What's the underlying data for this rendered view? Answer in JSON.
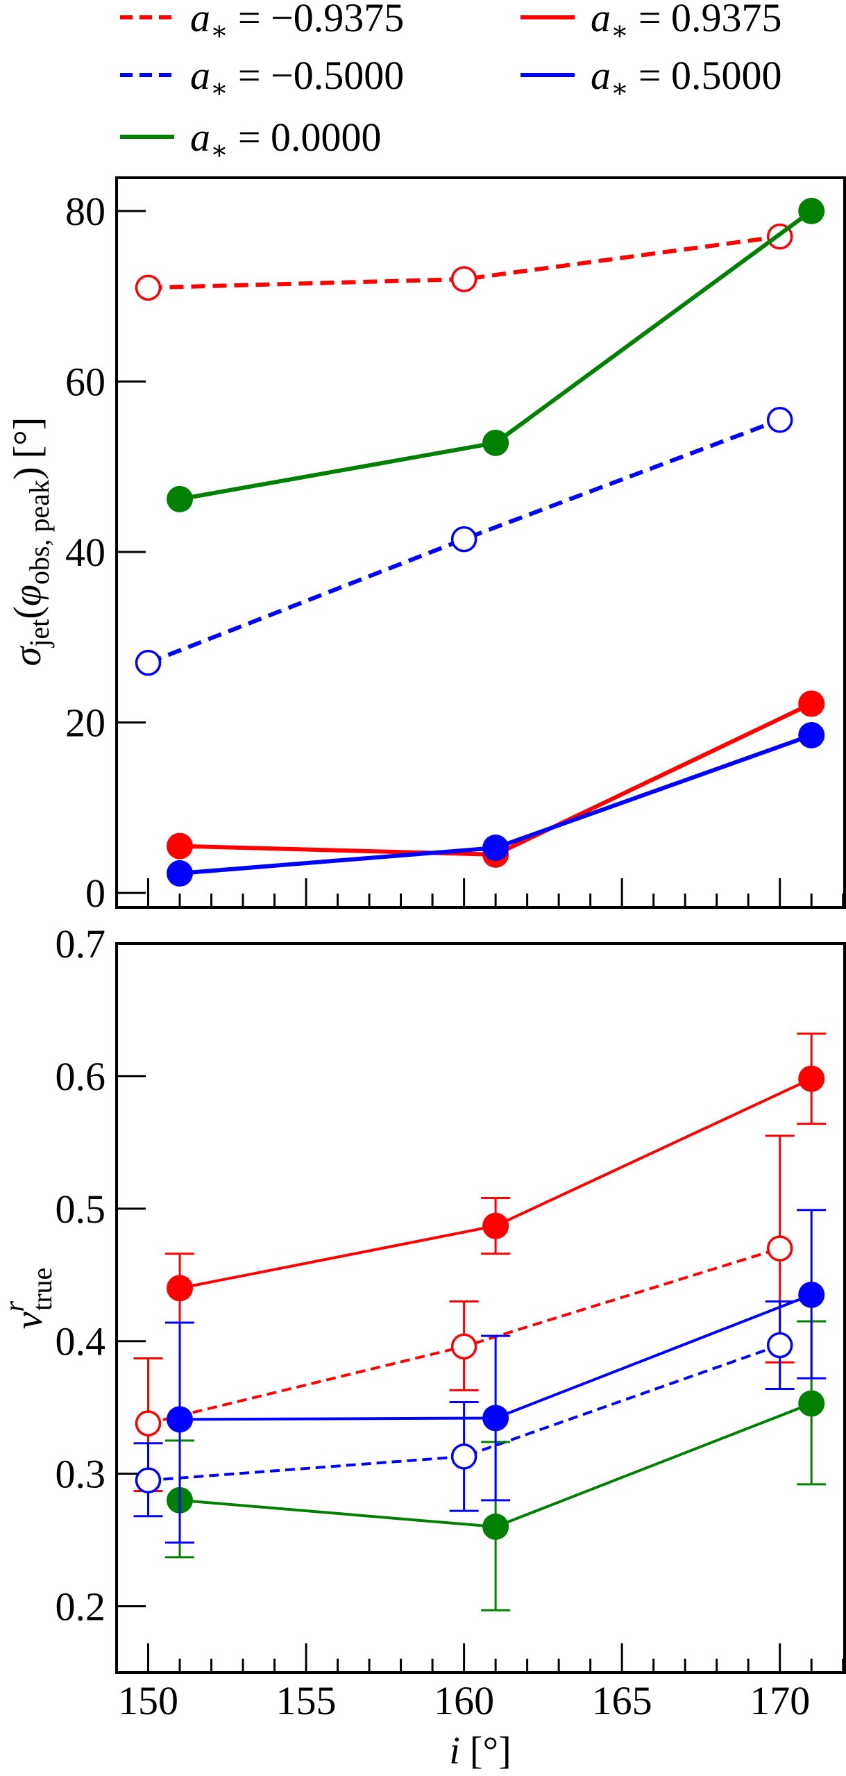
{
  "chart_data": [
    {
      "type": "line",
      "title": "",
      "xlabel": "",
      "ylabel": "σjet(φobs, peak) [°]",
      "ylabel_parts": {
        "main": "σ",
        "sub": "jet",
        "paren_open": "(",
        "phi": "φ",
        "phi_sub": "obs, peak",
        "paren_close": ")",
        "unit": "[°]"
      },
      "xlim": [
        149,
        172.05
      ],
      "ylim": [
        -1.7,
        83.9
      ],
      "xticks": [
        150,
        155,
        160,
        165,
        170
      ],
      "xtick_labels_shown": false,
      "yticks": [
        0,
        20,
        40,
        60,
        80
      ],
      "ytick_labels": [
        "0",
        "20",
        "40",
        "60",
        "80"
      ],
      "grid": false,
      "series": [
        {
          "name": "a* = −0.9375",
          "color": "#ff0000",
          "dashed": true,
          "filled": false,
          "x": [
            150,
            160,
            170
          ],
          "y": [
            71.0,
            72.0,
            77.0
          ]
        },
        {
          "name": "a* = −0.5000",
          "color": "#0000ff",
          "dashed": true,
          "filled": false,
          "x": [
            150,
            160,
            170
          ],
          "y": [
            27.0,
            41.5,
            55.5
          ]
        },
        {
          "name": "a* = 0.0000",
          "color": "#008000",
          "dashed": false,
          "filled": true,
          "x": [
            151,
            161,
            171
          ],
          "y": [
            46.2,
            52.8,
            80.0
          ]
        },
        {
          "name": "a* = 0.9375",
          "color": "#ff0000",
          "dashed": false,
          "filled": true,
          "x": [
            151,
            161,
            171
          ],
          "y": [
            5.5,
            4.5,
            22.2
          ]
        },
        {
          "name": "a* = 0.5000",
          "color": "#0000ff",
          "dashed": false,
          "filled": true,
          "x": [
            151,
            161,
            171
          ],
          "y": [
            2.3,
            5.3,
            18.5
          ]
        }
      ]
    },
    {
      "type": "line",
      "title": "",
      "xlabel": "i [°]",
      "xlabel_parts": {
        "var": "i",
        "unit": "[°]"
      },
      "ylabel": "v^r_true",
      "ylabel_parts": {
        "main": "v",
        "sup": "r",
        "sub": "true"
      },
      "xlim": [
        149,
        172.05
      ],
      "ylim": [
        0.15,
        0.7
      ],
      "xticks": [
        150,
        155,
        160,
        165,
        170
      ],
      "xtick_labels": [
        "150",
        "155",
        "160",
        "165",
        "170"
      ],
      "yticks": [
        0.2,
        0.3,
        0.4,
        0.5,
        0.6,
        0.7
      ],
      "ytick_labels": [
        "0.2",
        "0.3",
        "0.4",
        "0.5",
        "0.6",
        "0.7"
      ],
      "grid": false,
      "series": [
        {
          "name": "a* = −0.9375",
          "color": "#ff0000",
          "dashed": true,
          "filled": false,
          "x": [
            150,
            160,
            170
          ],
          "y": [
            0.338,
            0.396,
            0.47
          ],
          "err_low": [
            0.287,
            0.363,
            0.384
          ],
          "err_high": [
            0.387,
            0.43,
            0.555
          ]
        },
        {
          "name": "a* = −0.5000",
          "color": "#0000ff",
          "dashed": true,
          "filled": false,
          "x": [
            150,
            160,
            170
          ],
          "y": [
            0.295,
            0.313,
            0.397
          ],
          "err_low": [
            0.268,
            0.272,
            0.364
          ],
          "err_high": [
            0.323,
            0.354,
            0.43
          ]
        },
        {
          "name": "a* = 0.0000",
          "color": "#008000",
          "dashed": false,
          "filled": true,
          "x": [
            151,
            161,
            171
          ],
          "y": [
            0.28,
            0.26,
            0.353
          ],
          "err_low": [
            0.237,
            0.197,
            0.292
          ],
          "err_high": [
            0.325,
            0.324,
            0.415
          ]
        },
        {
          "name": "a* = 0.9375",
          "color": "#ff0000",
          "dashed": false,
          "filled": true,
          "x": [
            151,
            161,
            171
          ],
          "y": [
            0.44,
            0.487,
            0.598
          ],
          "err_low": [
            0.414,
            0.466,
            0.564
          ],
          "err_high": [
            0.466,
            0.508,
            0.632
          ]
        },
        {
          "name": "a* = 0.5000",
          "color": "#0000ff",
          "dashed": false,
          "filled": true,
          "x": [
            151,
            161,
            171
          ],
          "y": [
            0.341,
            0.342,
            0.435
          ],
          "err_low": [
            0.248,
            0.28,
            0.372
          ],
          "err_high": [
            0.414,
            0.404,
            0.499
          ]
        }
      ]
    }
  ],
  "legend": {
    "placement": "top, above plots, two columns",
    "entries": [
      {
        "symbol": "a",
        "sub": "∗",
        "value": "= −0.9375",
        "color": "#ff0000",
        "dashed": true
      },
      {
        "symbol": "a",
        "sub": "∗",
        "value": "= 0.9375",
        "color": "#ff0000",
        "dashed": false
      },
      {
        "symbol": "a",
        "sub": "∗",
        "value": "= −0.5000",
        "color": "#0000ff",
        "dashed": true
      },
      {
        "symbol": "a",
        "sub": "∗",
        "value": "= 0.5000",
        "color": "#0000ff",
        "dashed": false
      },
      {
        "symbol": "a",
        "sub": "∗",
        "value": "= 0.0000",
        "color": "#008000",
        "dashed": false
      }
    ]
  }
}
